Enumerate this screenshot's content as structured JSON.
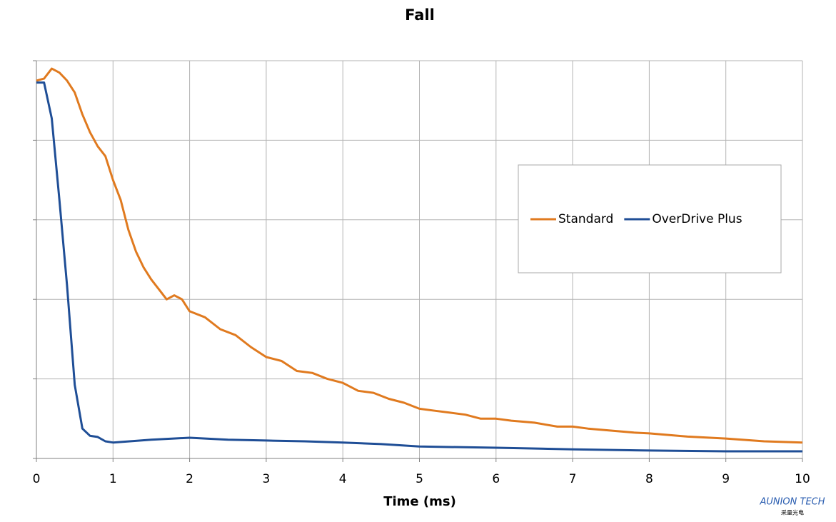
{
  "chart_data": {
    "type": "line",
    "title": "Fall",
    "x_label": "Time (ms)",
    "xlim": [
      0,
      10
    ],
    "xticks": [
      0,
      1,
      2,
      3,
      4,
      5,
      6,
      7,
      8,
      9,
      10
    ],
    "ylim": [
      0,
      100
    ],
    "yticks": [
      0,
      20,
      40,
      60,
      80,
      100
    ],
    "ytick_labels": false,
    "grid": true,
    "legend": "right",
    "series": [
      {
        "name": "Standard",
        "color": "#e07a1f",
        "x": [
          0,
          0.1,
          0.2,
          0.3,
          0.4,
          0.5,
          0.6,
          0.7,
          0.8,
          0.9,
          1.0,
          1.1,
          1.2,
          1.3,
          1.4,
          1.5,
          1.6,
          1.7,
          1.8,
          1.9,
          2.0,
          2.2,
          2.4,
          2.6,
          2.8,
          3.0,
          3.2,
          3.4,
          3.6,
          3.8,
          4.0,
          4.2,
          4.4,
          4.6,
          4.8,
          5.0,
          5.2,
          5.4,
          5.6,
          5.8,
          6.0,
          6.2,
          6.5,
          6.8,
          7.0,
          7.2,
          7.5,
          7.8,
          8.0,
          8.5,
          9.0,
          9.5,
          10
        ],
        "values": [
          95,
          95.5,
          98,
          97,
          95,
          92,
          86.5,
          82,
          78.5,
          76,
          70,
          65,
          57.5,
          52,
          48,
          45,
          42.5,
          40,
          41,
          40,
          37,
          35.5,
          32.5,
          31,
          28,
          25.5,
          24.5,
          22,
          21.5,
          20,
          19,
          17,
          16.5,
          15,
          14,
          12.5,
          12,
          11.5,
          11,
          10,
          10,
          9.5,
          9,
          8,
          8,
          7.5,
          7,
          6.5,
          6.3,
          5.5,
          5,
          4.3,
          4
        ]
      },
      {
        "name": "OverDrive Plus",
        "color": "#1f4e96",
        "x": [
          0,
          0.1,
          0.2,
          0.3,
          0.4,
          0.5,
          0.6,
          0.7,
          0.8,
          0.9,
          1.0,
          1.5,
          2.0,
          2.5,
          3.0,
          3.5,
          4.0,
          4.5,
          5.0,
          6.0,
          7.0,
          8.0,
          9.0,
          10
        ],
        "values": [
          94.5,
          94.5,
          85.5,
          65,
          43.5,
          18.5,
          7.5,
          5.7,
          5.4,
          4.3,
          4,
          4.7,
          5.2,
          4.7,
          4.5,
          4.3,
          4,
          3.6,
          3,
          2.7,
          2.3,
          2,
          1.8,
          1.8
        ]
      }
    ]
  },
  "logo": {
    "name": "AUNION TECH",
    "subtitle": "采量光电"
  }
}
